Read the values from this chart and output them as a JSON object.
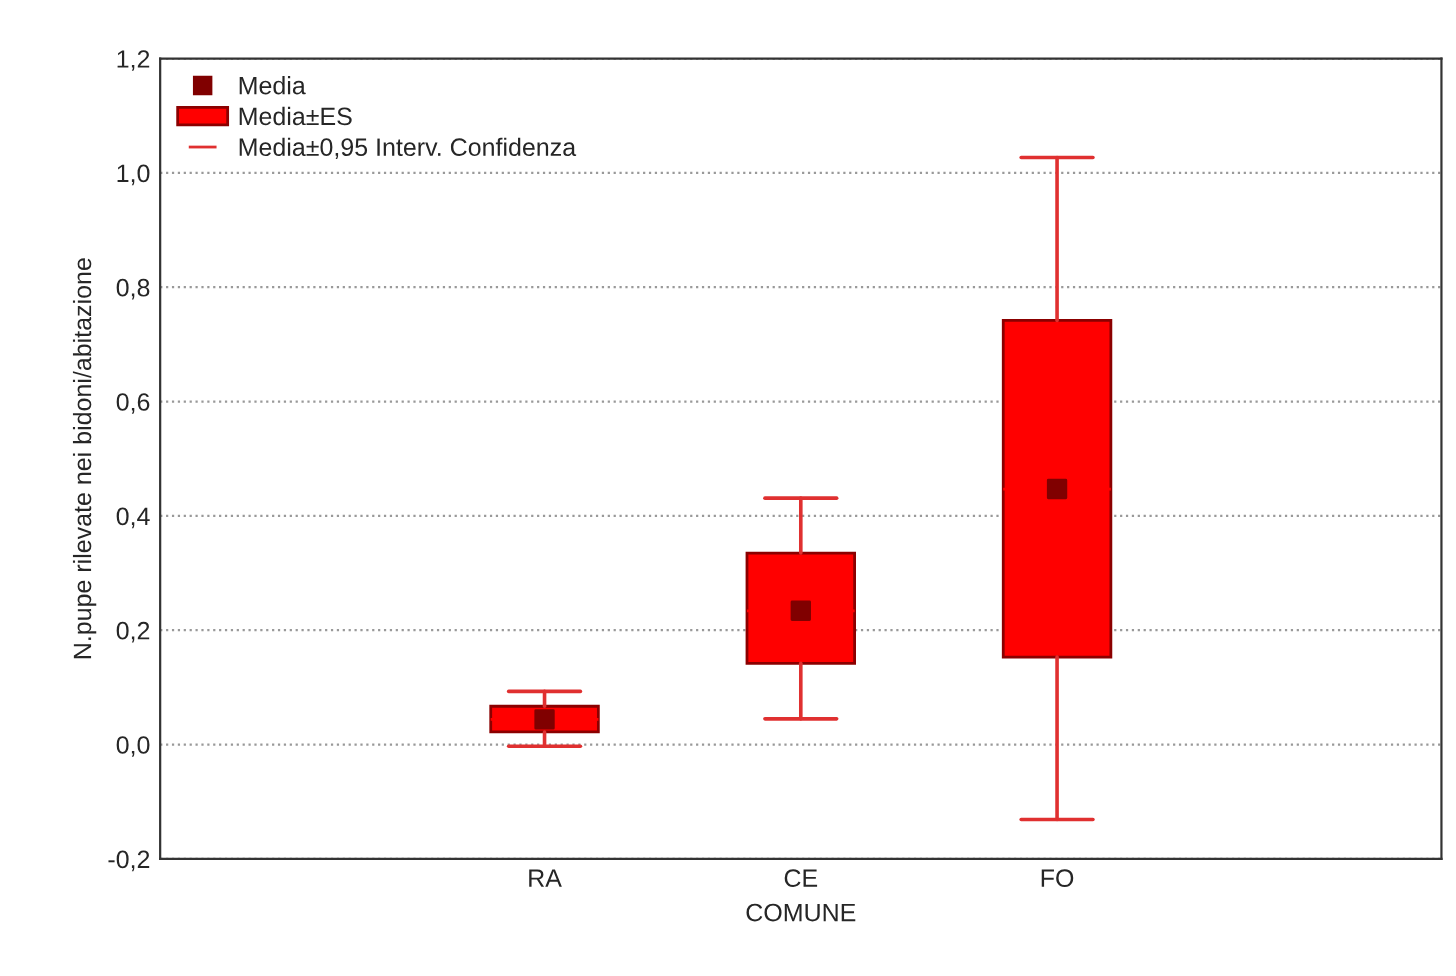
{
  "chart_data": {
    "type": "box",
    "xlabel": "COMUNE",
    "ylabel": "N.pupe rilevate nei bidoni/abitazione",
    "categories": [
      null,
      "RA",
      "CE",
      "FO",
      null
    ],
    "series": [
      {
        "name": "Media±ES",
        "color": "#ff0000",
        "boxes": [
          null,
          {
            "low": -0.003,
            "q1": 0.022,
            "median": 0.044,
            "q3": 0.067,
            "high": 0.093
          },
          {
            "low": 0.045,
            "q1": 0.142,
            "median": 0.234,
            "q3": 0.335,
            "high": 0.431
          },
          {
            "low": -0.131,
            "q1": 0.153,
            "median": 0.447,
            "q3": 0.742,
            "high": 1.027
          },
          null
        ]
      },
      {
        "name": "Media",
        "type": "scatter",
        "marker": "square",
        "color": "#800000",
        "values": [
          null,
          0.044,
          0.234,
          0.447,
          null
        ]
      }
    ],
    "annotations": [
      "Media±0,95 Interv. Confidenza"
    ],
    "ylim": [
      -0.2,
      1.2
    ],
    "yticks": [
      {
        "value": -0.2,
        "label": "-0,2"
      },
      {
        "value": 0,
        "label": "0,0"
      },
      {
        "value": 0.2,
        "label": "0,2"
      },
      {
        "value": 0.4,
        "label": "0,4"
      },
      {
        "value": 0.6,
        "label": "0,6"
      },
      {
        "value": 0.8,
        "label": "0,8"
      },
      {
        "value": 1.0,
        "label": "1,0"
      },
      {
        "value": 1.2,
        "label": "1,2"
      }
    ],
    "grid": "y",
    "legend": "top left"
  }
}
